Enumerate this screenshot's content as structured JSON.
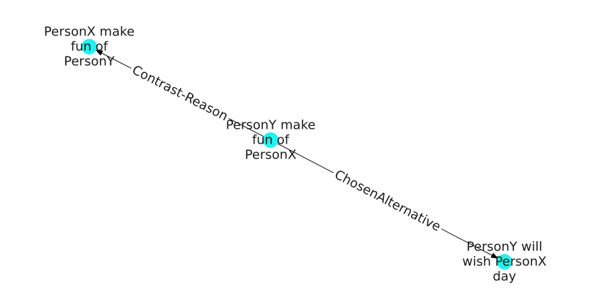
{
  "graph": {
    "node_color": "#22f2f2",
    "edge_color": "#000000",
    "nodes": [
      {
        "id": "n1",
        "lines": [
          "PersonX make",
          "fun of",
          "PersonY"
        ]
      },
      {
        "id": "n2",
        "lines": [
          "PersonY make",
          "fun of",
          "PersonX"
        ]
      },
      {
        "id": "n3",
        "lines": [
          "PersonY will",
          "wish PersonX",
          "day"
        ]
      }
    ],
    "edges": [
      {
        "from": "n2",
        "to": "n1",
        "label": "Contrast-Reason"
      },
      {
        "from": "n2",
        "to": "n3",
        "label": "ChosenAlternative"
      }
    ]
  }
}
